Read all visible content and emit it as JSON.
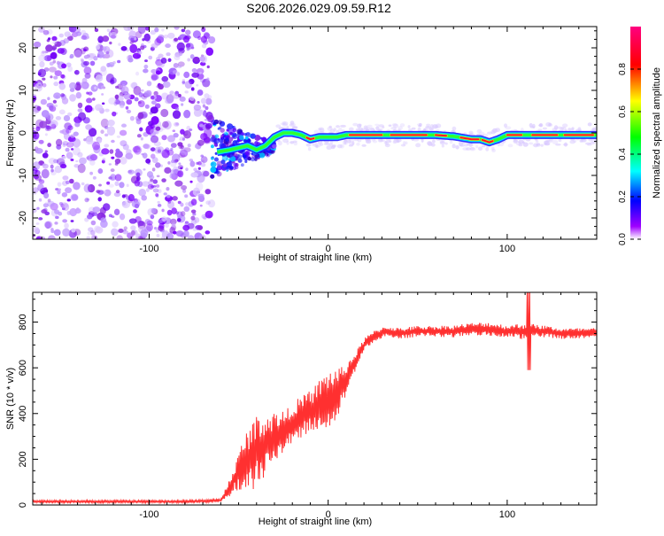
{
  "title": "S206.2026.029.09.59.R12",
  "chart_data": [
    {
      "type": "heatmap",
      "xlabel": "Height of straight line (km)",
      "ylabel": "Frequency (Hz)",
      "xlim": [
        -165,
        150
      ],
      "ylim": [
        -25,
        25
      ],
      "x_ticks": [
        -100,
        0,
        100
      ],
      "y_ticks": [
        -20,
        -10,
        0,
        10,
        20
      ],
      "colorbar": {
        "label": "Normalized spectral amplitude",
        "range": [
          0.0,
          1.0
        ],
        "ticks": [
          "0.0",
          "0.2",
          "0.4",
          "0.6",
          "0.8"
        ],
        "colors": [
          "#ffffff",
          "#a000ff",
          "#0000ff",
          "#00ffff",
          "#00ff00",
          "#ffff00",
          "#ff0000",
          "#ff0080"
        ]
      },
      "noise_region": {
        "x_start": -165,
        "x_end": -65,
        "freq_range": [
          -25,
          25
        ],
        "amplitude": 0.1
      },
      "transition_region": {
        "x_start": -65,
        "x_end": -30
      },
      "carrier_track": [
        [
          -62,
          -4.5
        ],
        [
          -55,
          -4.0
        ],
        [
          -50,
          -3.5
        ],
        [
          -45,
          -3.0
        ],
        [
          -40,
          -4.0
        ],
        [
          -35,
          -3.0
        ],
        [
          -30,
          -1.0
        ],
        [
          -25,
          0.0
        ],
        [
          -20,
          0.0
        ],
        [
          -15,
          -0.5
        ],
        [
          -10,
          -1.5
        ],
        [
          -5,
          -1.0
        ],
        [
          0,
          -1.0
        ],
        [
          5,
          -1.0
        ],
        [
          10,
          -0.5
        ],
        [
          20,
          -0.5
        ],
        [
          40,
          -0.5
        ],
        [
          60,
          -0.5
        ],
        [
          70,
          -0.8
        ],
        [
          80,
          -1.5
        ],
        [
          85,
          -1.5
        ],
        [
          90,
          -2.2
        ],
        [
          95,
          -1.5
        ],
        [
          100,
          -0.5
        ],
        [
          110,
          -0.5
        ],
        [
          120,
          -0.5
        ],
        [
          130,
          -0.5
        ],
        [
          140,
          -0.5
        ],
        [
          150,
          -0.5
        ]
      ]
    },
    {
      "type": "line",
      "xlabel": "Height of straight line (km)",
      "ylabel": "SNR (10 * v/v)",
      "xlim": [
        -165,
        150
      ],
      "ylim": [
        0,
        930
      ],
      "x_ticks": [
        -100,
        0,
        100
      ],
      "y_ticks": [
        0,
        200,
        400,
        600,
        800
      ],
      "color": "#ff3030",
      "series": [
        {
          "name": "SNR",
          "x": [
            -165,
            -140,
            -110,
            -80,
            -60,
            -56,
            -52,
            -48,
            -44,
            -40,
            -36,
            -32,
            -28,
            -24,
            -20,
            -16,
            -12,
            -8,
            -4,
            0,
            4,
            8,
            12,
            16,
            20,
            26,
            32,
            40,
            50,
            60,
            70,
            80,
            90,
            100,
            110,
            120,
            130,
            140,
            150
          ],
          "mean": [
            15,
            15,
            15,
            15,
            20,
            60,
            120,
            160,
            200,
            240,
            260,
            280,
            300,
            320,
            360,
            380,
            400,
            420,
            440,
            460,
            480,
            520,
            580,
            640,
            700,
            740,
            760,
            750,
            760,
            760,
            760,
            770,
            770,
            760,
            760,
            760,
            750,
            750,
            750
          ],
          "amp": [
            10,
            10,
            10,
            10,
            12,
            60,
            100,
            200,
            260,
            250,
            240,
            200,
            200,
            150,
            150,
            150,
            150,
            160,
            200,
            220,
            200,
            140,
            100,
            60,
            50,
            40,
            40,
            40,
            40,
            40,
            45,
            45,
            50,
            45,
            60,
            45,
            40,
            40,
            40
          ]
        }
      ]
    }
  ]
}
